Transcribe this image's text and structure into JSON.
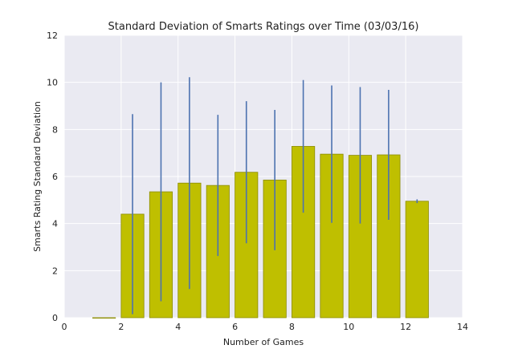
{
  "chart_data": {
    "type": "bar",
    "title": "Standard Deviation of Smarts Ratings over Time (03/03/16)",
    "xlabel": "Number of Games",
    "ylabel": "Smarts Rating Standard Deviation",
    "xlim": [
      0,
      14
    ],
    "ylim": [
      0,
      12
    ],
    "xticks": [
      0,
      2,
      4,
      6,
      8,
      10,
      12,
      14
    ],
    "yticks": [
      0,
      2,
      4,
      6,
      8,
      10,
      12
    ],
    "grid": true,
    "legend": "none",
    "colors": {
      "background": "#eaeaf2",
      "grid": "#ffffff",
      "bar_fill": "#bfbf00",
      "bar_edge": "#8c8c00",
      "error_bar": "#4c72b0"
    },
    "bar_width": 0.8,
    "x": [
      1,
      2,
      3,
      4,
      5,
      6,
      7,
      8,
      9,
      10,
      11,
      12
    ],
    "values": [
      0.0,
      4.4,
      5.35,
      5.72,
      5.62,
      6.18,
      5.85,
      7.28,
      6.95,
      6.9,
      6.92,
      4.95
    ],
    "error": [
      0.0,
      4.25,
      4.65,
      4.5,
      3.0,
      3.02,
      2.98,
      2.82,
      2.92,
      2.9,
      2.76,
      0.08
    ]
  }
}
